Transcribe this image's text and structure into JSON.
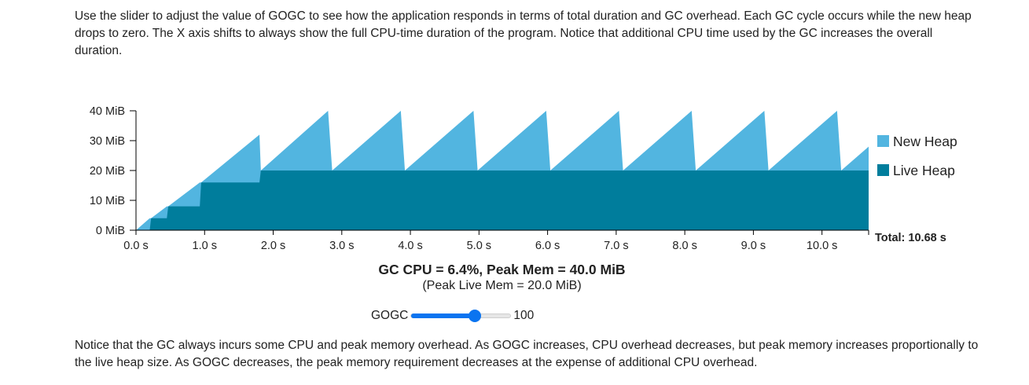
{
  "intro_text": "Use the slider to adjust the value of GOGC to see how the application responds in terms of total duration and GC overhead. Each GC cycle occurs while the new heap drops to zero. The X axis shifts to always show the full CPU-time duration of the program. Notice that additional CPU time used by the GC increases the overall duration.",
  "outro_text": "Notice that the GC always incurs some CPU and peak memory overhead. As GOGC increases, CPU overhead decreases, but peak memory increases proportionally to the live heap size. As GOGC decreases, the peak memory requirement decreases at the expense of additional CPU overhead.",
  "stats": {
    "summary": "GC CPU = 6.4%, Peak Mem = 40.0 MiB",
    "peak_live": "(Peak Live Mem = 20.0 MiB)"
  },
  "gogc": {
    "label": "GOGC",
    "value": "100",
    "fraction": 0.64
  },
  "colors": {
    "new_heap": "#52b5e0",
    "live_heap": "#007d9c",
    "slider_accent": "#0a74f0"
  },
  "chart_data": {
    "type": "area",
    "xlim": [
      0,
      10.68
    ],
    "ylim": [
      0,
      40
    ],
    "x_ticks": [
      "0.0 s",
      "1.0 s",
      "2.0 s",
      "3.0 s",
      "4.0 s",
      "5.0 s",
      "6.0 s",
      "7.0 s",
      "8.0 s",
      "9.0 s",
      "10.0 s"
    ],
    "y_ticks": [
      "0 MiB",
      "10 MiB",
      "20 MiB",
      "30 MiB",
      "40 MiB"
    ],
    "total_label": "Total: 10.68 s",
    "legend_position": "right",
    "series": [
      {
        "name": "New Heap",
        "color": "#52b5e0",
        "x": [
          0,
          0.2,
          0.22,
          0.45,
          0.47,
          0.93,
          0.95,
          1.8,
          1.82,
          2.8,
          2.86,
          3.86,
          3.92,
          4.92,
          4.98,
          5.98,
          6.04,
          7.04,
          7.1,
          8.1,
          8.16,
          9.16,
          9.22,
          10.22,
          10.28,
          10.68
        ],
        "y": [
          0,
          4,
          4,
          8,
          8,
          16,
          16,
          32,
          20,
          40,
          20,
          40,
          20,
          40,
          20,
          40,
          20,
          40,
          20,
          40,
          20,
          40,
          20,
          40,
          20,
          28
        ]
      },
      {
        "name": "Live Heap",
        "color": "#007d9c",
        "x": [
          0,
          0.2,
          0.22,
          0.45,
          0.47,
          0.93,
          0.95,
          1.8,
          1.82,
          10.68
        ],
        "y": [
          0,
          0,
          4,
          4,
          8,
          8,
          16,
          16,
          20,
          20
        ]
      }
    ]
  }
}
